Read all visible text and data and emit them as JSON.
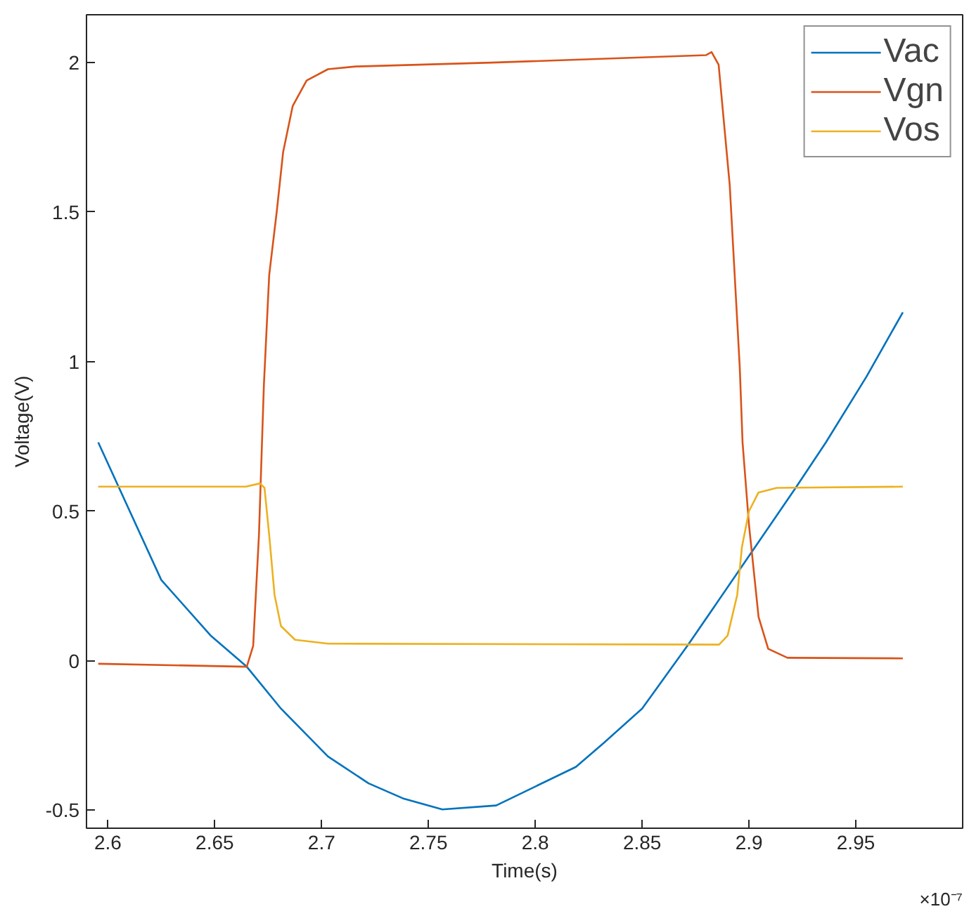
{
  "chart_data": {
    "type": "line",
    "xlabel": "Time(s)",
    "ylabel": "Voltage(V)",
    "annotations": [
      "×10⁻⁷"
    ],
    "xlim": [
      2.59,
      3.0
    ],
    "ylim": [
      -0.56,
      2.16
    ],
    "xticks": [
      2.6,
      2.65,
      2.7,
      2.75,
      2.8,
      2.85,
      2.9,
      2.95
    ],
    "yticks": [
      -0.5,
      0,
      0.5,
      1,
      1.5,
      2
    ],
    "grid": false,
    "legend": "top right",
    "line_style": "solid",
    "series": [
      {
        "name": "Vac",
        "color": "#0072bd",
        "x": [
          2.5955,
          2.625,
          2.648,
          2.665,
          2.681,
          2.703,
          2.722,
          2.738,
          2.7565,
          2.7817,
          2.819,
          2.832,
          2.85,
          2.8716,
          2.9,
          2.922,
          2.936,
          2.955,
          2.972
        ],
        "values": [
          0.73,
          0.27,
          0.085,
          -0.02,
          -0.16,
          -0.32,
          -0.41,
          -0.46,
          -0.497,
          -0.484,
          -0.355,
          -0.275,
          -0.16,
          0.054,
          0.35,
          0.58,
          0.73,
          0.95,
          1.165
        ]
      },
      {
        "name": "Vgn",
        "color": "#d95319",
        "x": [
          2.5955,
          2.665,
          2.668,
          2.6707,
          2.673,
          2.6755,
          2.679,
          2.682,
          2.6865,
          2.693,
          2.703,
          2.716,
          2.7796,
          2.88,
          2.8825,
          2.8858,
          2.891,
          2.8957,
          2.897,
          2.9,
          2.9045,
          2.909,
          2.918,
          2.972
        ],
        "values": [
          -0.01,
          -0.02,
          0.05,
          0.42,
          0.92,
          1.29,
          1.5,
          1.7,
          1.855,
          1.94,
          1.978,
          1.987,
          2.0,
          2.025,
          2.035,
          1.993,
          1.59,
          0.98,
          0.73,
          0.455,
          0.146,
          0.04,
          0.01,
          0.008
        ]
      },
      {
        "name": "Vos",
        "color": "#edb120",
        "x": [
          2.5955,
          2.6646,
          2.6712,
          2.6733,
          2.6755,
          2.678,
          2.681,
          2.6876,
          2.703,
          2.886,
          2.89,
          2.8945,
          2.8967,
          2.9,
          2.9044,
          2.913,
          2.972
        ],
        "values": [
          0.582,
          0.582,
          0.593,
          0.578,
          0.42,
          0.22,
          0.116,
          0.07,
          0.057,
          0.054,
          0.084,
          0.22,
          0.38,
          0.5,
          0.562,
          0.578,
          0.582
        ]
      }
    ]
  }
}
